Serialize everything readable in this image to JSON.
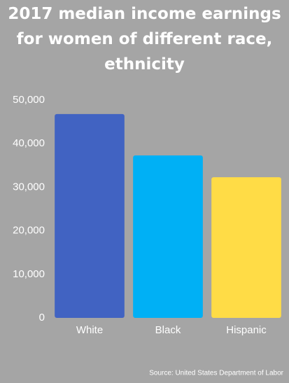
{
  "chart_data": {
    "type": "bar",
    "title": "2017 median income earnings for women of different race, ethnicity",
    "categories": [
      "White",
      "Black",
      "Hispanic"
    ],
    "values": [
      46800,
      37300,
      32300
    ],
    "colors": [
      "#4163c2",
      "#00b0f5",
      "#ffdc46"
    ],
    "ylim": [
      0,
      50000
    ],
    "yticks": [
      0,
      {
        "value": 10000,
        "label": "10,000"
      },
      {
        "value": 20000,
        "label": "20,000"
      },
      {
        "value": 30000,
        "label": "30,000"
      },
      {
        "value": 40000,
        "label": "40,000"
      },
      {
        "value": 50000,
        "label": "50,000"
      }
    ],
    "grid": false,
    "source": "Source: United States Department of Labor"
  }
}
